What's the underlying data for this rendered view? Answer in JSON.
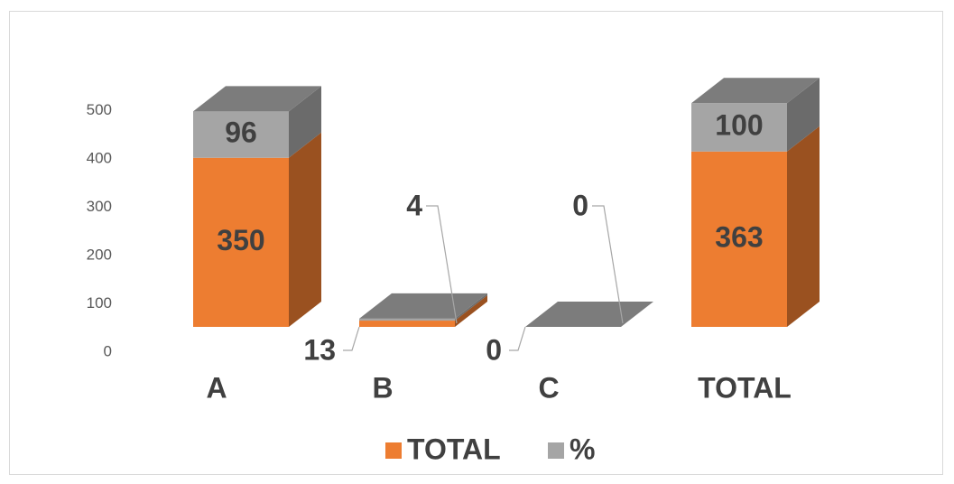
{
  "chart_data": {
    "type": "bar",
    "stacked": true,
    "three_d": true,
    "categories": [
      "A",
      "B",
      "C",
      "TOTAL"
    ],
    "series": [
      {
        "name": "TOTAL",
        "values": [
          350,
          13,
          0,
          363
        ],
        "color": "#ED7D31"
      },
      {
        "name": "%",
        "values": [
          96,
          4,
          0,
          100
        ],
        "color": "#A5A5A5"
      }
    ],
    "y_ticks": [
      "0",
      "100",
      "200",
      "300",
      "400",
      "500"
    ],
    "ylim": [
      0,
      500
    ],
    "grid": false,
    "legend_position": "bottom"
  }
}
